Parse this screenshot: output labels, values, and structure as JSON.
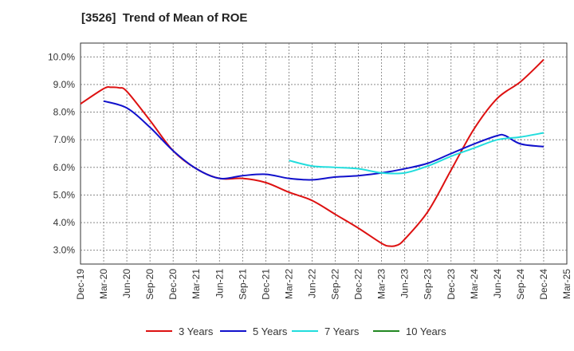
{
  "chart_data": {
    "type": "line",
    "title": "[3526]  Trend of Mean of ROE",
    "xlabel": "",
    "ylabel": "",
    "x_ticks": [
      "Dec-19",
      "Mar-20",
      "Jun-20",
      "Sep-20",
      "Dec-20",
      "Mar-21",
      "Jun-21",
      "Sep-21",
      "Dec-21",
      "Mar-22",
      "Jun-22",
      "Sep-22",
      "Dec-22",
      "Mar-23",
      "Jun-23",
      "Sep-23",
      "Dec-23",
      "Mar-24",
      "Jun-24",
      "Sep-24",
      "Dec-24",
      "Mar-25"
    ],
    "y_ticks": [
      "3.0%",
      "4.0%",
      "5.0%",
      "6.0%",
      "7.0%",
      "8.0%",
      "9.0%",
      "10.0%"
    ],
    "ylim": [
      2.5,
      10.5
    ],
    "grid": true,
    "legend_position": "bottom",
    "series": [
      {
        "name": "3 Years",
        "color": "#dd1111",
        "values": [
          {
            "x": "Dec-19",
            "y": 8.3
          },
          {
            "x": "Mar-20",
            "y": 8.85
          },
          {
            "x": "Apr-20",
            "y": 8.9
          },
          {
            "x": "May-20",
            "y": 8.88
          },
          {
            "x": "Jun-20",
            "y": 8.75
          },
          {
            "x": "Sep-20",
            "y": 7.7
          },
          {
            "x": "Dec-20",
            "y": 6.6
          },
          {
            "x": "Mar-21",
            "y": 5.95
          },
          {
            "x": "Jun-21",
            "y": 5.6
          },
          {
            "x": "Sep-21",
            "y": 5.6
          },
          {
            "x": "Dec-21",
            "y": 5.45
          },
          {
            "x": "Mar-22",
            "y": 5.1
          },
          {
            "x": "Jun-22",
            "y": 4.8
          },
          {
            "x": "Sep-22",
            "y": 4.3
          },
          {
            "x": "Dec-22",
            "y": 3.8
          },
          {
            "x": "Mar-23",
            "y": 3.25
          },
          {
            "x": "Apr-23",
            "y": 3.15
          },
          {
            "x": "May-23",
            "y": 3.18
          },
          {
            "x": "Jun-23",
            "y": 3.4
          },
          {
            "x": "Sep-23",
            "y": 4.4
          },
          {
            "x": "Dec-23",
            "y": 5.9
          },
          {
            "x": "Mar-24",
            "y": 7.4
          },
          {
            "x": "Jun-24",
            "y": 8.5
          },
          {
            "x": "Sep-24",
            "y": 9.1
          },
          {
            "x": "Dec-24",
            "y": 9.9
          }
        ]
      },
      {
        "name": "5 Years",
        "color": "#1111cc",
        "values": [
          {
            "x": "Mar-20",
            "y": 8.4
          },
          {
            "x": "Jun-20",
            "y": 8.15
          },
          {
            "x": "Sep-20",
            "y": 7.45
          },
          {
            "x": "Dec-20",
            "y": 6.6
          },
          {
            "x": "Mar-21",
            "y": 5.95
          },
          {
            "x": "Jun-21",
            "y": 5.6
          },
          {
            "x": "Sep-21",
            "y": 5.7
          },
          {
            "x": "Dec-21",
            "y": 5.75
          },
          {
            "x": "Mar-22",
            "y": 5.6
          },
          {
            "x": "Jun-22",
            "y": 5.55
          },
          {
            "x": "Sep-22",
            "y": 5.65
          },
          {
            "x": "Dec-22",
            "y": 5.7
          },
          {
            "x": "Mar-23",
            "y": 5.8
          },
          {
            "x": "Jun-23",
            "y": 5.95
          },
          {
            "x": "Sep-23",
            "y": 6.15
          },
          {
            "x": "Dec-23",
            "y": 6.5
          },
          {
            "x": "Mar-24",
            "y": 6.85
          },
          {
            "x": "Jun-24",
            "y": 7.15
          },
          {
            "x": "Jul-24",
            "y": 7.15
          },
          {
            "x": "Sep-24",
            "y": 6.85
          },
          {
            "x": "Dec-24",
            "y": 6.75
          }
        ]
      },
      {
        "name": "7 Years",
        "color": "#22dddd",
        "values": [
          {
            "x": "Mar-22",
            "y": 6.25
          },
          {
            "x": "Jun-22",
            "y": 6.05
          },
          {
            "x": "Sep-22",
            "y": 6.0
          },
          {
            "x": "Dec-22",
            "y": 5.95
          },
          {
            "x": "Mar-23",
            "y": 5.8
          },
          {
            "x": "Jun-23",
            "y": 5.8
          },
          {
            "x": "Sep-23",
            "y": 6.05
          },
          {
            "x": "Dec-23",
            "y": 6.4
          },
          {
            "x": "Mar-24",
            "y": 6.7
          },
          {
            "x": "Jun-24",
            "y": 7.0
          },
          {
            "x": "Sep-24",
            "y": 7.1
          },
          {
            "x": "Dec-24",
            "y": 7.25
          }
        ]
      },
      {
        "name": "10 Years",
        "color": "#228822",
        "values": []
      }
    ]
  }
}
